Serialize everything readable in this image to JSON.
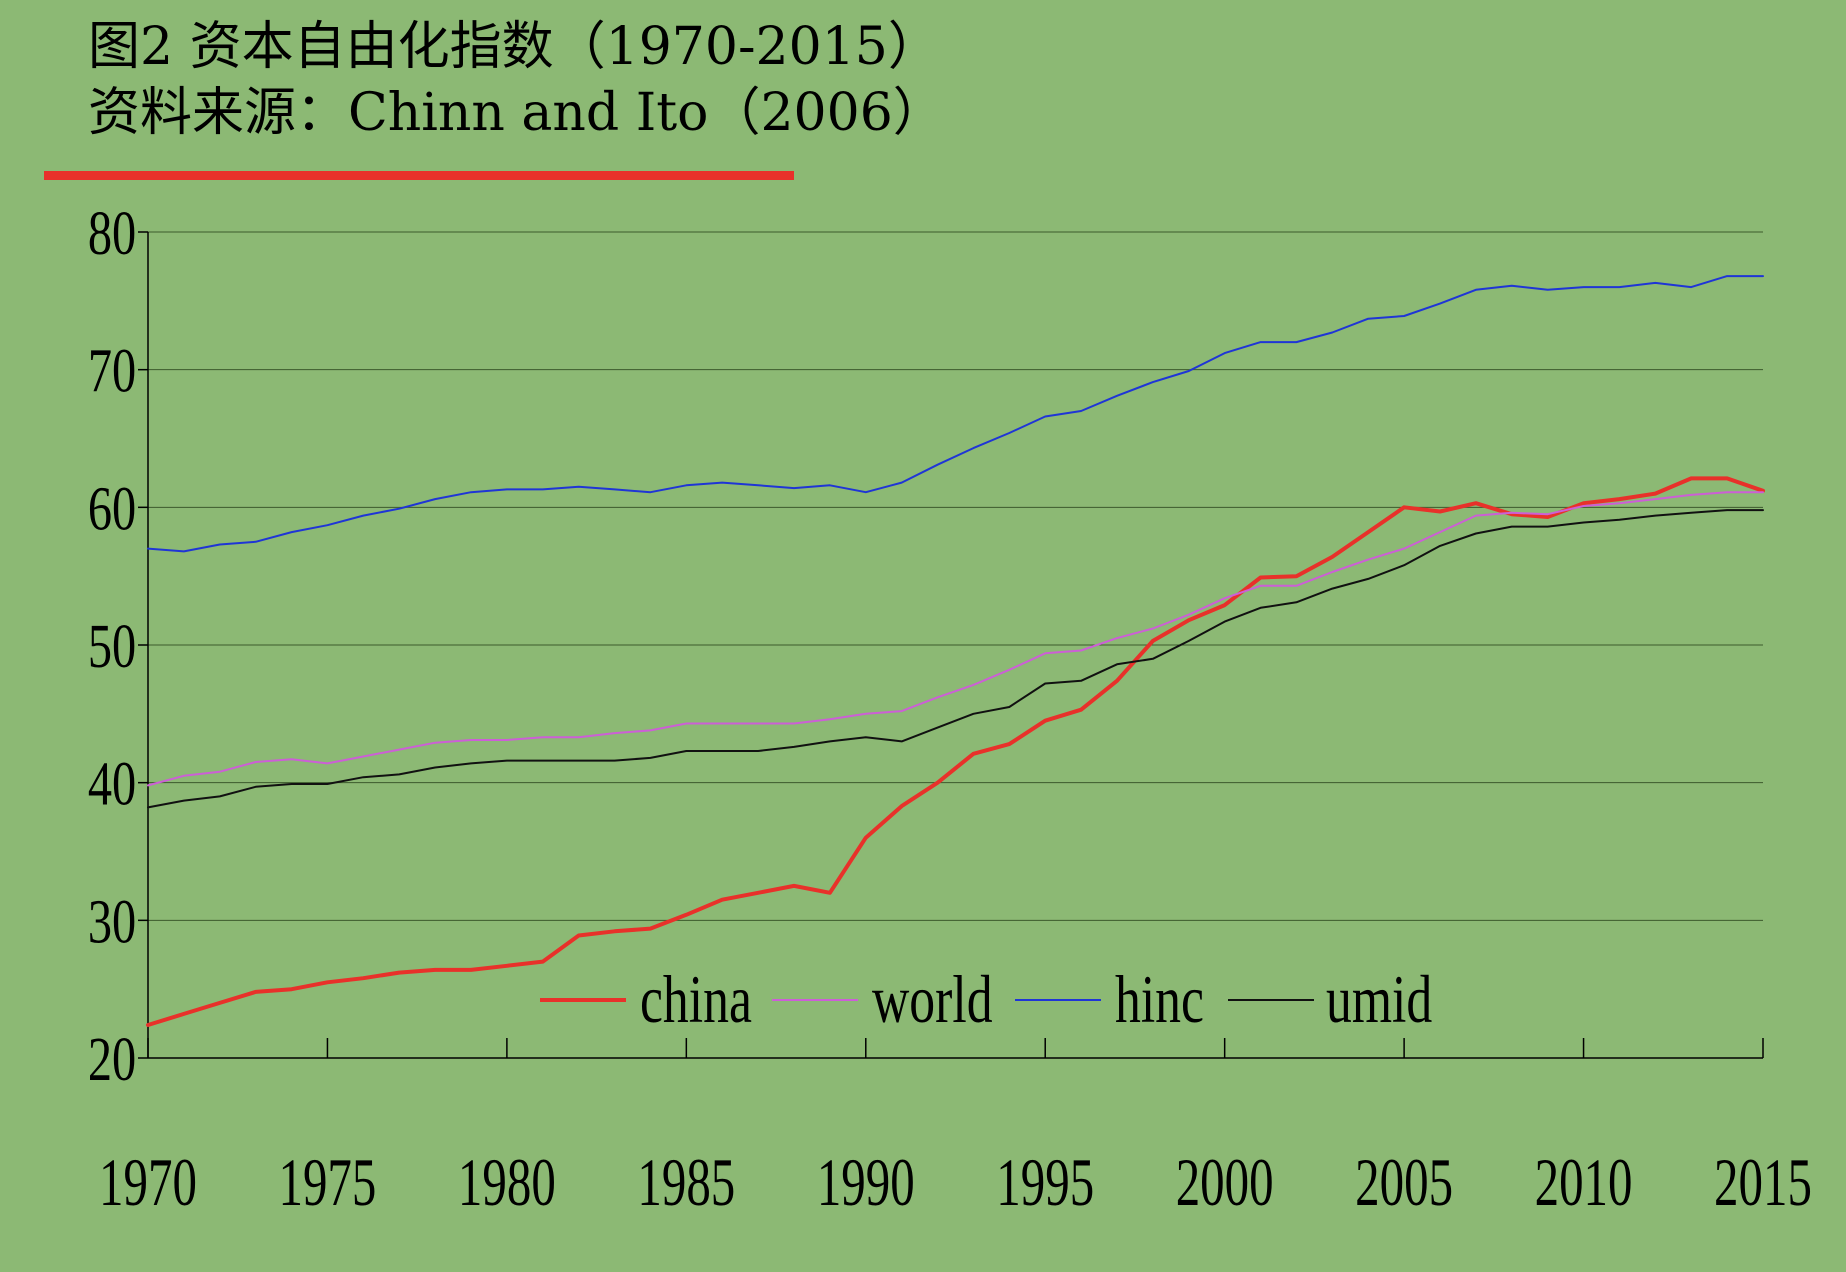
{
  "header": {
    "title": "图2 资本自由化指数（1970-2015）",
    "source": "资料来源：Chinn and Ito（2006）",
    "rule_color": "#e8312a"
  },
  "chart_data": {
    "type": "line",
    "title": "图2 资本自由化指数（1970-2015）",
    "subtitle": "资料来源：Chinn and Ito（2006）",
    "xlabel": "",
    "ylabel": "",
    "xlim": [
      1970,
      2015
    ],
    "ylim": [
      20,
      80
    ],
    "y_ticks": [
      "20",
      "30",
      "40",
      "50",
      "60",
      "70",
      "80"
    ],
    "x_ticks": [
      "1970",
      "1975",
      "1980",
      "1985",
      "1990",
      "1995",
      "2000",
      "2005",
      "2010",
      "2015"
    ],
    "grid": "horizontal",
    "legend_position": "bottom-center",
    "x": [
      1970,
      1971,
      1972,
      1973,
      1974,
      1975,
      1976,
      1977,
      1978,
      1979,
      1980,
      1981,
      1982,
      1983,
      1984,
      1985,
      1986,
      1987,
      1988,
      1989,
      1990,
      1991,
      1992,
      1993,
      1994,
      1995,
      1996,
      1997,
      1998,
      1999,
      2000,
      2001,
      2002,
      2003,
      2004,
      2005,
      2006,
      2007,
      2008,
      2009,
      2010,
      2011,
      2012,
      2013,
      2014,
      2015
    ],
    "series": [
      {
        "name": "china",
        "color": "#e8312a",
        "width": 4,
        "values": [
          22.4,
          23.2,
          24.0,
          24.8,
          25.0,
          25.5,
          25.8,
          26.2,
          26.4,
          26.4,
          26.7,
          27.0,
          28.9,
          29.2,
          29.4,
          30.4,
          31.5,
          32.0,
          32.5,
          32.0,
          36.0,
          38.3,
          40.0,
          42.1,
          42.8,
          44.5,
          45.3,
          47.4,
          50.3,
          51.8,
          52.9,
          54.9,
          55.0,
          56.4,
          58.2,
          60.0,
          59.7,
          60.3,
          59.5,
          59.3,
          60.3,
          60.6,
          61.0,
          62.1,
          62.1,
          61.2
        ]
      },
      {
        "name": "world",
        "color": "#cc5fd6",
        "width": 2,
        "values": [
          39.8,
          40.5,
          40.8,
          41.5,
          41.7,
          41.4,
          41.9,
          42.4,
          42.9,
          43.1,
          43.1,
          43.3,
          43.3,
          43.6,
          43.8,
          44.3,
          44.3,
          44.3,
          44.3,
          44.6,
          45.0,
          45.2,
          46.2,
          47.1,
          48.2,
          49.4,
          49.6,
          50.5,
          51.2,
          52.2,
          53.4,
          54.3,
          54.3,
          55.3,
          56.2,
          57.0,
          58.2,
          59.4,
          59.6,
          59.5,
          60.1,
          60.3,
          60.6,
          60.9,
          61.1,
          61.1
        ]
      },
      {
        "name": "hinc",
        "color": "#1f35d6",
        "width": 2,
        "values": [
          57.0,
          56.8,
          57.3,
          57.5,
          58.2,
          58.7,
          59.4,
          59.9,
          60.6,
          61.1,
          61.3,
          61.3,
          61.5,
          61.3,
          61.1,
          61.6,
          61.8,
          61.6,
          61.4,
          61.6,
          61.1,
          61.8,
          63.1,
          64.3,
          65.4,
          66.6,
          67.0,
          68.1,
          69.1,
          69.9,
          71.2,
          72.0,
          72.0,
          72.7,
          73.7,
          73.9,
          74.8,
          75.8,
          76.1,
          75.8,
          76.0,
          76.0,
          76.3,
          76.0,
          76.8,
          76.8
        ]
      },
      {
        "name": "umid",
        "color": "#111111",
        "width": 2,
        "values": [
          38.2,
          38.7,
          39.0,
          39.7,
          39.9,
          39.9,
          40.4,
          40.6,
          41.1,
          41.4,
          41.6,
          41.6,
          41.6,
          41.6,
          41.8,
          42.3,
          42.3,
          42.3,
          42.6,
          43.0,
          43.3,
          43.0,
          44.0,
          45.0,
          45.5,
          47.2,
          47.4,
          48.6,
          49.0,
          50.3,
          51.7,
          52.7,
          53.1,
          54.1,
          54.8,
          55.8,
          57.2,
          58.1,
          58.6,
          58.6,
          58.9,
          59.1,
          59.4,
          59.6,
          59.8,
          59.8
        ]
      }
    ]
  }
}
